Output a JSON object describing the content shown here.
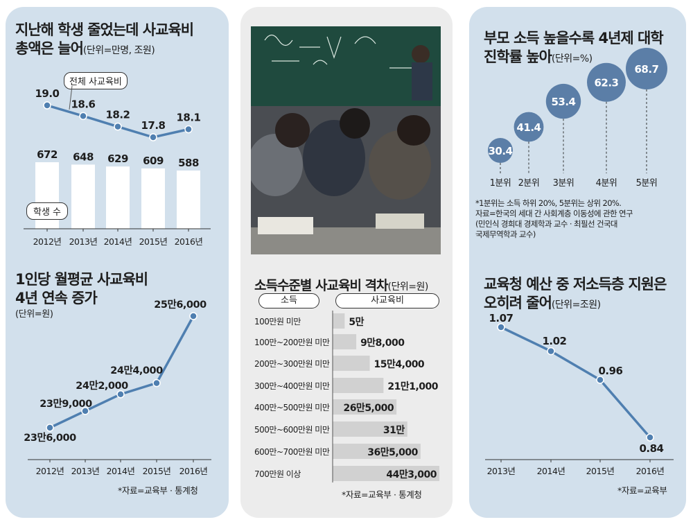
{
  "panel1": {
    "title_line1": "지난해 학생 줄었는데 사교육비",
    "title_line2": "총액은 늘어",
    "title_unit": "(단위=만명, 조원)",
    "callout_total": "전체 사교육비",
    "callout_students": "학생 수"
  },
  "panel1b": {
    "title_line1": "1인당 월평균 사교육비",
    "title_line2": "4년 연속 증가",
    "title_unit": "(단위=원)",
    "source": "*자료=교육부 · 통계청"
  },
  "panel2": {
    "photo_alt": "classroom",
    "title": "소득수준별 사교육비 격차",
    "title_unit": "(단위=원)",
    "col_income": "소득",
    "col_spend": "사교육비",
    "source": "*자료=교육부 · 통계청"
  },
  "panel3": {
    "title_line1": "부모 소득 높을수록 4년제 대학",
    "title_line2": "진학률 높아",
    "title_unit": "(단위=%)",
    "note": "*1분위는 소득 하위 20%, 5분위는 상위 20%.\n자료=한국의 세대 간 사회계층 이동성에 관한 연구\n(민인식 경희대 경제학과 교수 · 최필선 건국대\n국제무역학과 교수)"
  },
  "panel3b": {
    "title_line1": "교육청 예산 중 저소득층 지원은",
    "title_line2": "오히려 줄어",
    "title_unit": "(단위=조원)",
    "source": "*자료=교육부"
  },
  "colors": {
    "line": "#4f7fb0",
    "bubble": "#5b7ea7",
    "bar_light": "#ffffff",
    "bar_grey": "#d1d1d1",
    "panel_blue": "#d2e0ec",
    "panel_grey": "#ececec"
  },
  "chart_data": [
    {
      "id": "total-private-edu",
      "type": "line",
      "categories": [
        "2012년",
        "2013년",
        "2014년",
        "2015년",
        "2016년"
      ],
      "series": [
        {
          "name": "전체 사교육비",
          "values": [
            19.0,
            18.6,
            18.2,
            17.8,
            18.1
          ],
          "labels": [
            "19.0",
            "18.6",
            "18.2",
            "17.8",
            "18.1"
          ]
        }
      ]
    },
    {
      "id": "students",
      "type": "bar",
      "categories": [
        "2012년",
        "2013년",
        "2014년",
        "2015년",
        "2016년"
      ],
      "series": [
        {
          "name": "학생 수",
          "values": [
            672,
            648,
            629,
            609,
            588
          ],
          "labels": [
            "672",
            "648",
            "629",
            "609",
            "588"
          ]
        }
      ]
    },
    {
      "id": "per-capita",
      "type": "line",
      "categories": [
        "2012년",
        "2013년",
        "2014년",
        "2015년",
        "2016년"
      ],
      "values": [
        236000,
        239000,
        242000,
        244000,
        256000
      ],
      "labels": [
        "23만6,000",
        "23만9,000",
        "24만2,000",
        "24만4,000",
        "25만6,000"
      ]
    },
    {
      "id": "income-gap",
      "type": "bar",
      "categories": [
        "100만원 미만",
        "100만~200만원 미만",
        "200만~300만원 미만",
        "300만~400만원 미만",
        "400만~500만원 미만",
        "500만~600만원 미만",
        "600만~700만원 미만",
        "700만원 이상"
      ],
      "values": [
        50000,
        98000,
        154000,
        211000,
        265000,
        310000,
        365000,
        443000
      ],
      "labels": [
        "5만",
        "9만8,000",
        "15만4,000",
        "21만1,000",
        "26만5,000",
        "31만",
        "36만5,000",
        "44만3,000"
      ]
    },
    {
      "id": "college-rate",
      "type": "scatter",
      "categories": [
        "1분위",
        "2분위",
        "3분위",
        "4분위",
        "5분위"
      ],
      "values": [
        30.4,
        41.4,
        53.4,
        62.3,
        68.7
      ],
      "labels": [
        "30.4",
        "41.4",
        "53.4",
        "62.3",
        "68.7"
      ]
    },
    {
      "id": "low-income-budget",
      "type": "line",
      "categories": [
        "2013년",
        "2014년",
        "2015년",
        "2016년"
      ],
      "values": [
        1.07,
        1.02,
        0.96,
        0.84
      ],
      "labels": [
        "1.07",
        "1.02",
        "0.96",
        "0.84"
      ]
    }
  ]
}
